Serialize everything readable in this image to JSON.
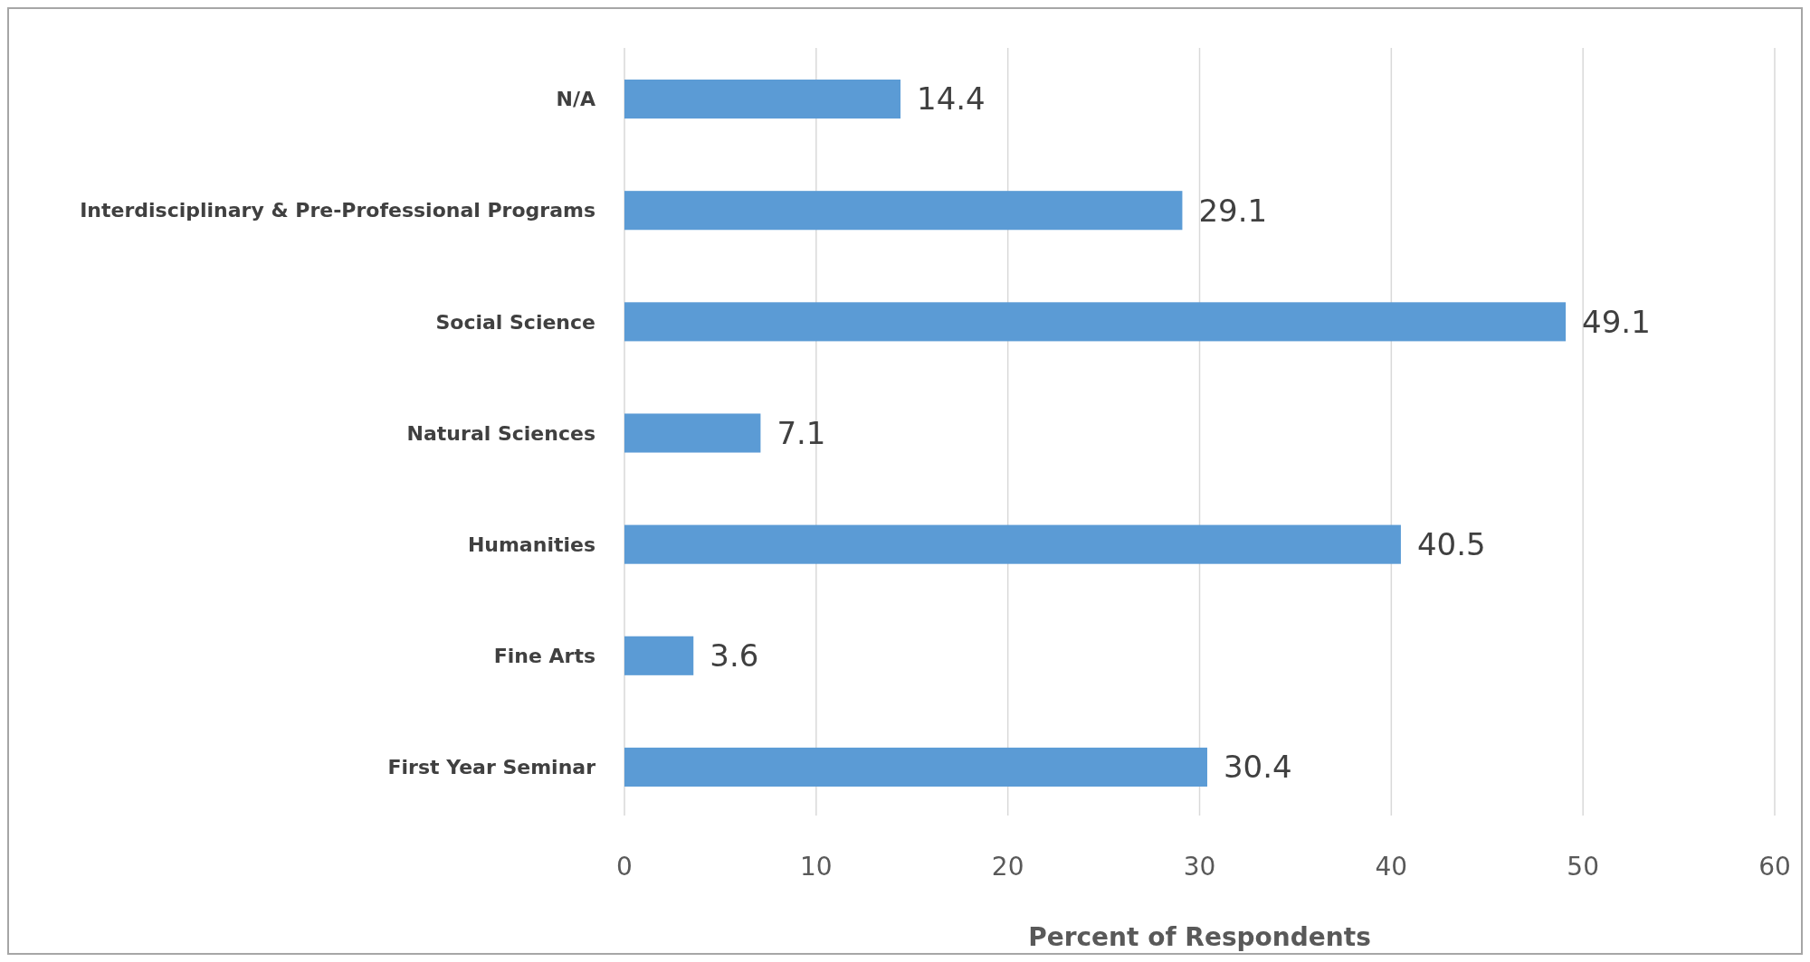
{
  "chart_data": {
    "type": "bar",
    "orientation": "horizontal",
    "xlabel": "Percent of Respondents",
    "categories": [
      "N/A",
      "Interdisciplinary & Pre-Professional Programs",
      "Social Science",
      "Natural Sciences",
      "Humanities",
      "Fine Arts",
      "First Year Seminar"
    ],
    "values": [
      14.4,
      29.1,
      49.1,
      7.1,
      40.5,
      3.6,
      30.4
    ],
    "color": "#5b9bd5",
    "data_labels": true,
    "grid": "x",
    "xlim": [
      0,
      60
    ],
    "xticks": [
      0,
      10,
      20,
      30,
      40,
      50,
      60
    ]
  }
}
